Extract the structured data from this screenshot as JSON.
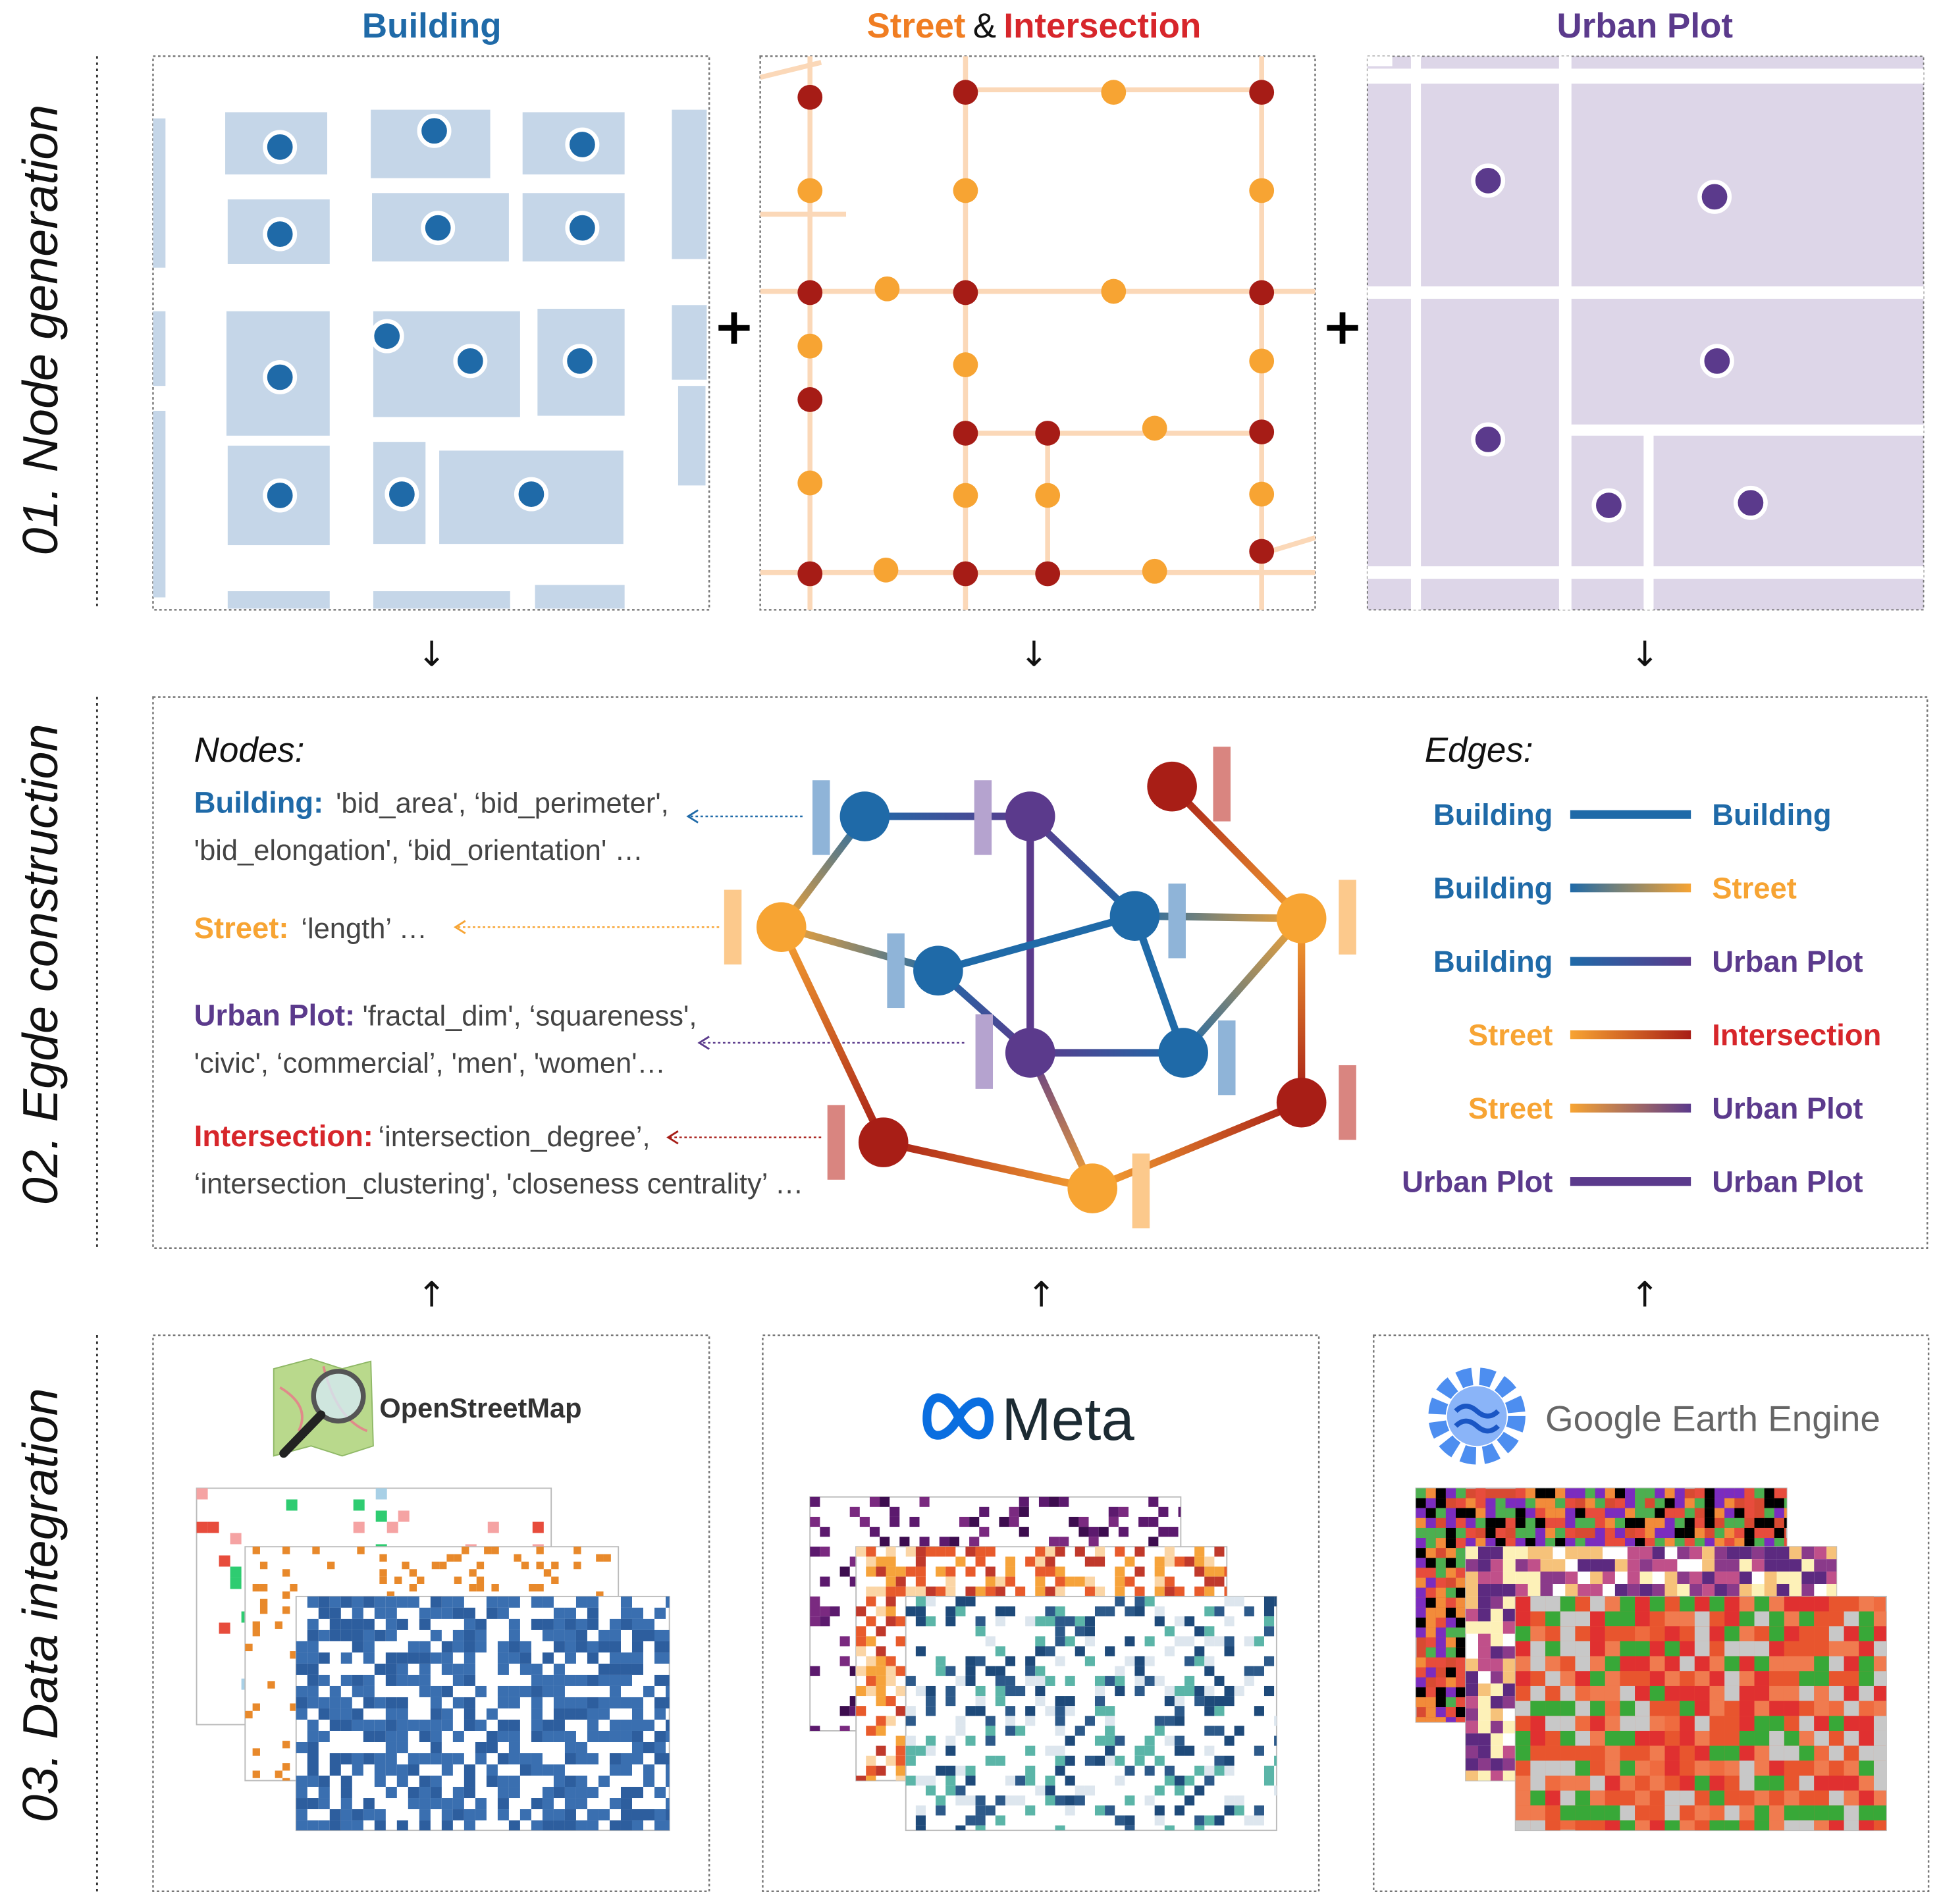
{
  "colors": {
    "building": "#1f6aa8",
    "building_light": "#c5d6e8",
    "street": "#f7a433",
    "street_light": "#fbd8b8",
    "intersection": "#d7262b",
    "intersection_dot": "#a61c16",
    "urban_plot": "#5b3a8c",
    "urban_plot_light": "#ddd6e8"
  },
  "row_labels": [
    "01. Node generation",
    "02. Egde construction",
    "03. Data integration"
  ],
  "columns": {
    "building": "Building",
    "street": "Street",
    "amp": "&",
    "intersection": "Intersection",
    "urban_plot": "Urban Plot"
  },
  "plus_sign": "+",
  "arrow_down": "↓",
  "arrow_up": "↑",
  "nodes_section": {
    "heading": "Nodes:",
    "items": [
      {
        "key": "Building:",
        "line1": "'bid_area', ‘bid_perimeter',",
        "line2": "'bid_elongation', ‘bid_orientation' …"
      },
      {
        "key": "Street:",
        "line1": "‘length’  …",
        "line2": ""
      },
      {
        "key": "Urban Plot:",
        "line1": "'fractal_dim',  ‘squareness',",
        "line2": "'civic', ‘commercial’, 'men', 'women'…"
      },
      {
        "key": "Intersection:",
        "line1": "‘intersection_degree’,",
        "line2": "‘intersection_clustering', 'closeness centrality’ …"
      }
    ]
  },
  "edges_section": {
    "heading": "Edges:",
    "rows": [
      {
        "from": "Building",
        "to": "Building",
        "from_type": "building",
        "to_type": "building"
      },
      {
        "from": "Building",
        "to": "Street",
        "from_type": "building",
        "to_type": "street"
      },
      {
        "from": "Building",
        "to": "Urban Plot",
        "from_type": "building",
        "to_type": "urban_plot"
      },
      {
        "from": "Street",
        "to": "Intersection",
        "from_type": "street",
        "to_type": "intersection"
      },
      {
        "from": "Street",
        "to": "Urban Plot",
        "from_type": "street",
        "to_type": "urban_plot"
      },
      {
        "from": "Urban Plot",
        "to": "Urban Plot",
        "from_type": "urban_plot",
        "to_type": "urban_plot"
      }
    ]
  },
  "sources": {
    "osm": "OpenStreetMap",
    "meta": "Meta",
    "gee": "Google Earth Engine"
  }
}
